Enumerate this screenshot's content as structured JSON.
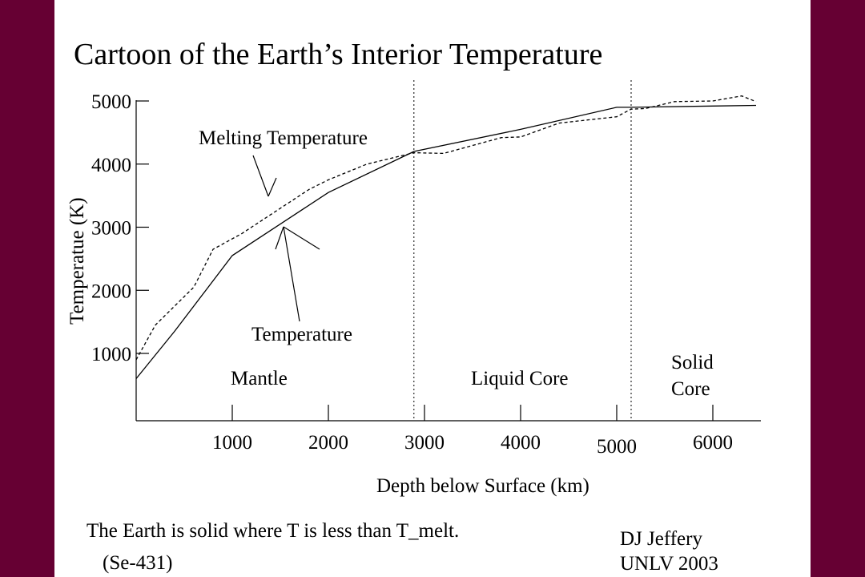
{
  "colors": {
    "frame": "#660033",
    "background": "#ffffff",
    "ink": "#000000"
  },
  "chart_data": {
    "type": "line",
    "title": "Cartoon of the Earth’s Interior Temperature",
    "xlabel": "Depth below Surface (km)",
    "ylabel": "Temperatue (K)",
    "xlim": [
      0,
      6500
    ],
    "ylim": [
      0,
      5200
    ],
    "x_ticks": [
      {
        "value": 1000,
        "label": "1000"
      },
      {
        "value": 2000,
        "label": "2000"
      },
      {
        "value": 3000,
        "label": "3000"
      },
      {
        "value": 4000,
        "label": "4000"
      },
      {
        "value": 5000,
        "label": "5000"
      },
      {
        "value": 6000,
        "label": "6000"
      }
    ],
    "y_ticks": [
      {
        "value": 1000,
        "label": "1000"
      },
      {
        "value": 2000,
        "label": "2000"
      },
      {
        "value": 3000,
        "label": "3000"
      },
      {
        "value": 4000,
        "label": "4000"
      },
      {
        "value": 5000,
        "label": "5000"
      }
    ],
    "boundaries": [
      2890,
      5150
    ],
    "regions": [
      {
        "label": "Mantle"
      },
      {
        "label": "Liquid Core"
      },
      {
        "label": "Solid Core"
      }
    ],
    "series": [
      {
        "name": "Temperature",
        "style": "solid",
        "x": [
          0,
          400,
          1000,
          1500,
          2000,
          2890,
          4000,
          5000,
          5150,
          6000,
          6450
        ],
        "y": [
          600,
          1350,
          2550,
          3050,
          3550,
          4200,
          4550,
          4900,
          4900,
          4920,
          4930
        ]
      },
      {
        "name": "Melting Temperature",
        "style": "dashed",
        "x": [
          0,
          200,
          600,
          800,
          1100,
          1500,
          1800,
          2000,
          2400,
          2890,
          3200,
          3800,
          4000,
          4400,
          5000,
          5150,
          5300,
          5600,
          6000,
          6300,
          6450
        ],
        "y": [
          900,
          1450,
          2050,
          2650,
          2900,
          3300,
          3600,
          3750,
          4000,
          4180,
          4170,
          4420,
          4430,
          4650,
          4750,
          4870,
          4880,
          4990,
          5000,
          5080,
          4990
        ]
      }
    ],
    "annotations": [
      {
        "text": "Melting Temperature",
        "target": "Melting Temperature"
      },
      {
        "text": "Temperature",
        "target": "Temperature"
      }
    ]
  },
  "footer": {
    "caption": "The Earth is solid where T is less than T_melt.",
    "reference": "(Se-431)",
    "author": "DJ Jeffery",
    "affiliation": "UNLV 2003"
  }
}
